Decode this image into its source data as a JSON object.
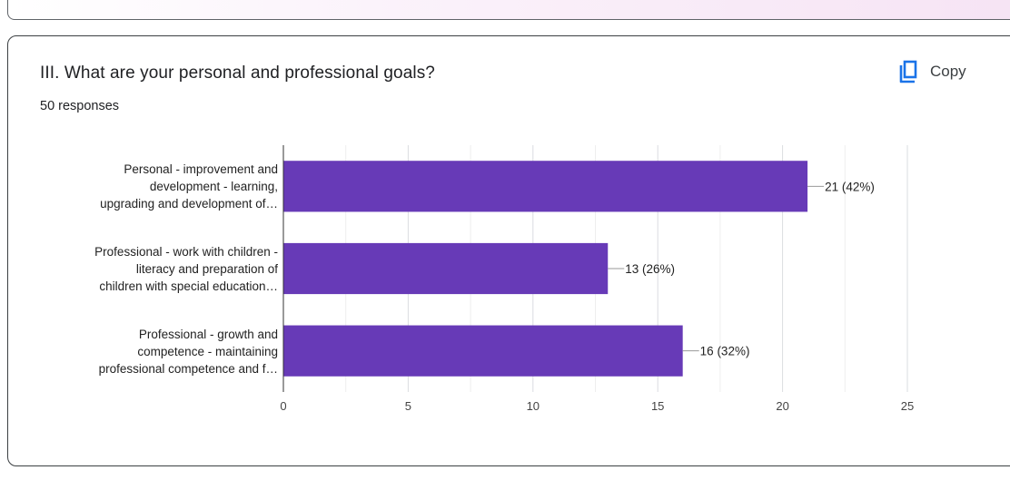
{
  "question": {
    "title": "III. What are your personal and professional goals?",
    "responses": "50 responses",
    "copy_label": "Copy",
    "copy_icon": "copy-icon"
  },
  "colors": {
    "bar": "#673ab7",
    "grid": "#e0e0e0",
    "accent": "#1a73e8"
  },
  "chart_data": {
    "type": "bar",
    "orientation": "horizontal",
    "title": "",
    "xlabel": "",
    "ylabel": "",
    "categories": [
      [
        "Personal - improvement and",
        "development - learning,",
        "upgrading and development of…"
      ],
      [
        "Professional - work with children -",
        "literacy and preparation of",
        "children with special education…"
      ],
      [
        "Professional - growth and",
        "competence - maintaining",
        "professional competence and f…"
      ]
    ],
    "values": [
      21,
      13,
      16
    ],
    "data_labels": [
      "21 (42%)",
      "13 (26%)",
      "16 (32%)"
    ],
    "xlim": [
      0,
      25
    ],
    "ticks": [
      "0",
      "5",
      "10",
      "15",
      "20",
      "25"
    ],
    "grid": true
  }
}
